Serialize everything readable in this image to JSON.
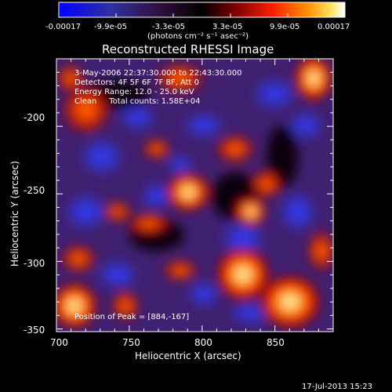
{
  "colorbar": {
    "tick_labels": [
      "-0.00017",
      "-9.9e-05",
      "-3.3e-05",
      "3.3e-05",
      "9.9e-05",
      "0.00017"
    ],
    "unit_label": "(photons cm⁻² s⁻¹ asec⁻²)"
  },
  "title": "Reconstructed RHESSI Image",
  "annotations": {
    "time_range": "3-May-2006 22:37:30.000 to 22:43:30.000",
    "detectors": "Detectors: 4F 5F 6F 7F 8F, Att 0",
    "energy_range": "Energy Range: 12.0 - 25.0 keV",
    "clean": "Clean     Total counts: 1.58E+04",
    "peak": "Position of Peak = [884,-167]"
  },
  "axes": {
    "xlabel": "Heliocentric X (arcsec)",
    "ylabel": "Heliocentric Y (arcsec)",
    "x_ticks": [
      "700",
      "750",
      "800",
      "850"
    ],
    "y_ticks": [
      "-200",
      "-250",
      "-300",
      "-350"
    ],
    "xlim": [
      700,
      890
    ],
    "ylim": [
      -352,
      -150
    ]
  },
  "timestamp": "17-Jul-2013 15:23",
  "colors": {
    "cmap": [
      "#0000ff",
      "#2020d0",
      "#3030b0",
      "#402060",
      "#200020",
      "#000000",
      "#500000",
      "#c00000",
      "#ff3000",
      "#ff8000",
      "#ffd040",
      "#ffffff"
    ]
  }
}
